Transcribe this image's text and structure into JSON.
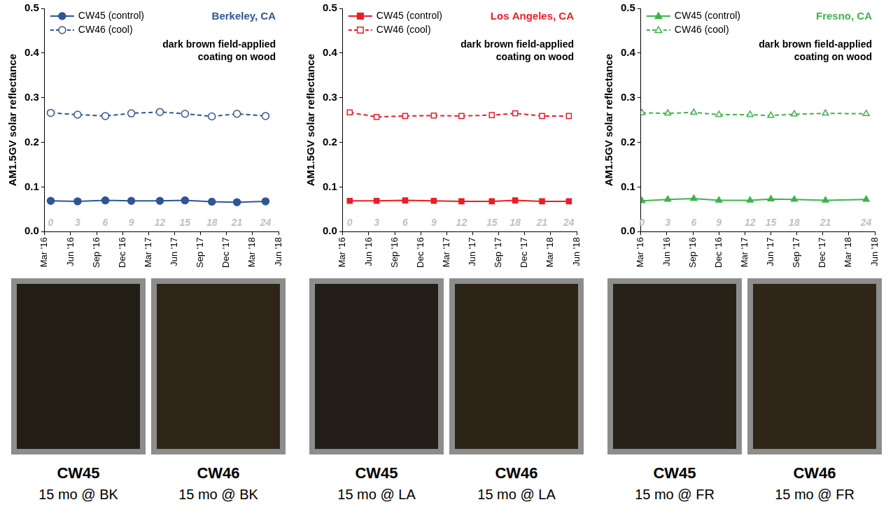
{
  "chart_data": [
    {
      "type": "line",
      "title": "Berkeley, CA",
      "color": "#2f5597",
      "annotation": [
        "dark brown field-applied",
        "coating on wood"
      ],
      "y_label": "AM1.5GV solar reflectance",
      "x": [
        0.7,
        3.8,
        7.0,
        10.0,
        13.3,
        16.2,
        19.3,
        22.2,
        25.5
      ],
      "point_labels": [
        0,
        3,
        6,
        9,
        12,
        15,
        18,
        21,
        24
      ],
      "xlim": [
        0,
        27
      ],
      "xticks": [
        {
          "value": 0,
          "label": "Mar '16"
        },
        {
          "value": 3,
          "label": "Jun '16"
        },
        {
          "value": 6,
          "label": "Sep '16"
        },
        {
          "value": 9,
          "label": "Dec '16"
        },
        {
          "value": 12,
          "label": "Mar '17"
        },
        {
          "value": 15,
          "label": "Jun '17"
        },
        {
          "value": 18,
          "label": "Sep '17"
        },
        {
          "value": 21,
          "label": "Dec '17"
        },
        {
          "value": 24,
          "label": "Mar '18"
        },
        {
          "value": 27,
          "label": "Jun '18"
        }
      ],
      "ylim": [
        0,
        0.5
      ],
      "yticks": [
        {
          "value": 0,
          "label": "0.0"
        },
        {
          "value": 0.1,
          "label": "0.1"
        },
        {
          "value": 0.2,
          "label": "0.2"
        },
        {
          "value": 0.3,
          "label": "0.3"
        },
        {
          "value": 0.4,
          "label": "0.4"
        },
        {
          "value": 0.5,
          "label": "0.5"
        }
      ],
      "grid": false,
      "legend": "upper left",
      "series": [
        {
          "name": "CW45 (control)",
          "color": "#2f5597",
          "marker": "circle",
          "line_style": "solid",
          "values": [
            0.069,
            0.068,
            0.07,
            0.069,
            0.069,
            0.07,
            0.067,
            0.066,
            0.068
          ]
        },
        {
          "name": "CW46 (cool)",
          "color": "#2f5597",
          "marker": "circle-open",
          "line_style": "dashed",
          "values": [
            0.266,
            0.262,
            0.259,
            0.265,
            0.268,
            0.264,
            0.258,
            0.264,
            0.259
          ]
        }
      ]
    },
    {
      "type": "line",
      "title": "Los Angeles, CA",
      "color": "#ee1c25",
      "annotation": [
        "dark brown field-applied",
        "coating on wood"
      ],
      "y_label": "AM1.5GV solar reflectance",
      "x": [
        0.8,
        3.9,
        7.2,
        10.5,
        13.7,
        17.2,
        19.9,
        23.0,
        26.1
      ],
      "point_labels": [
        0,
        3,
        6,
        9,
        12,
        15,
        18,
        21,
        24
      ],
      "xlim": [
        0,
        27
      ],
      "xticks": [
        {
          "value": 0,
          "label": "Mar '16"
        },
        {
          "value": 3,
          "label": "Jun '16"
        },
        {
          "value": 6,
          "label": "Sep '16"
        },
        {
          "value": 9,
          "label": "Dec '16"
        },
        {
          "value": 12,
          "label": "Mar '17"
        },
        {
          "value": 15,
          "label": "Jun '17"
        },
        {
          "value": 18,
          "label": "Sep '17"
        },
        {
          "value": 21,
          "label": "Dec '17"
        },
        {
          "value": 24,
          "label": "Mar '18"
        },
        {
          "value": 27,
          "label": "Jun '18"
        }
      ],
      "ylim": [
        0,
        0.5
      ],
      "yticks": [
        {
          "value": 0,
          "label": "0.0"
        },
        {
          "value": 0.1,
          "label": "0.1"
        },
        {
          "value": 0.2,
          "label": "0.2"
        },
        {
          "value": 0.3,
          "label": "0.3"
        },
        {
          "value": 0.4,
          "label": "0.4"
        },
        {
          "value": 0.5,
          "label": "0.5"
        }
      ],
      "grid": false,
      "legend": "upper left",
      "series": [
        {
          "name": "CW45 (control)",
          "color": "#ee1c25",
          "marker": "square",
          "line_style": "solid",
          "values": [
            0.069,
            0.069,
            0.07,
            0.069,
            0.068,
            0.068,
            0.07,
            0.068,
            0.068
          ]
        },
        {
          "name": "CW46 (cool)",
          "color": "#ee1c25",
          "marker": "square-open",
          "line_style": "dashed",
          "values": [
            0.267,
            0.257,
            0.259,
            0.26,
            0.259,
            0.261,
            0.265,
            0.259,
            0.259
          ]
        }
      ]
    },
    {
      "type": "line",
      "title": "Fresno, CA",
      "color": "#3cb44b",
      "annotation": [
        "dark brown field-applied",
        "coating on wood"
      ],
      "y_label": "AM1.5GV solar reflectance",
      "x": [
        0.1,
        3.1,
        6.1,
        9.0,
        12.6,
        15.0,
        17.7,
        21.3,
        26.0
      ],
      "point_labels": [
        0,
        3,
        6,
        9,
        12,
        15,
        18,
        21,
        24
      ],
      "xlim": [
        0,
        27
      ],
      "xticks": [
        {
          "value": 0,
          "label": "Mar '16"
        },
        {
          "value": 3,
          "label": "Jun '16"
        },
        {
          "value": 6,
          "label": "Sep '16"
        },
        {
          "value": 9,
          "label": "Dec '16"
        },
        {
          "value": 12,
          "label": "Mar '17"
        },
        {
          "value": 15,
          "label": "Jun '17"
        },
        {
          "value": 18,
          "label": "Sep '17"
        },
        {
          "value": 21,
          "label": "Dec '17"
        },
        {
          "value": 24,
          "label": "Mar '18"
        },
        {
          "value": 27,
          "label": "Jun '18"
        }
      ],
      "ylim": [
        0,
        0.5
      ],
      "yticks": [
        {
          "value": 0,
          "label": "0.0"
        },
        {
          "value": 0.1,
          "label": "0.1"
        },
        {
          "value": 0.2,
          "label": "0.2"
        },
        {
          "value": 0.3,
          "label": "0.3"
        },
        {
          "value": 0.4,
          "label": "0.4"
        },
        {
          "value": 0.5,
          "label": "0.5"
        }
      ],
      "grid": false,
      "legend": "upper left",
      "series": [
        {
          "name": "CW45 (control)",
          "color": "#3cb44b",
          "marker": "triangle",
          "line_style": "solid",
          "values": [
            0.069,
            0.072,
            0.074,
            0.07,
            0.07,
            0.073,
            0.072,
            0.07,
            0.072
          ]
        },
        {
          "name": "CW46 (cool)",
          "color": "#3cb44b",
          "marker": "triangle-open",
          "line_style": "dashed",
          "values": [
            0.266,
            0.265,
            0.267,
            0.262,
            0.262,
            0.26,
            0.263,
            0.265,
            0.264
          ]
        }
      ]
    }
  ],
  "photos": [
    [
      {
        "label": "CW45",
        "caption": "15 mo @ BK",
        "color": "#221e16"
      },
      {
        "label": "CW46",
        "caption": "15 mo @ BK",
        "color": "#2e2518"
      }
    ],
    [
      {
        "label": "CW45",
        "caption": "15 mo @ LA",
        "color": "#221e17"
      },
      {
        "label": "CW46",
        "caption": "15 mo @ LA",
        "color": "#2d2418"
      }
    ],
    [
      {
        "label": "CW45",
        "caption": "15 mo @ FR",
        "color": "#272118"
      },
      {
        "label": "CW46",
        "caption": "15 mo @ FR",
        "color": "#2f2619"
      }
    ]
  ]
}
